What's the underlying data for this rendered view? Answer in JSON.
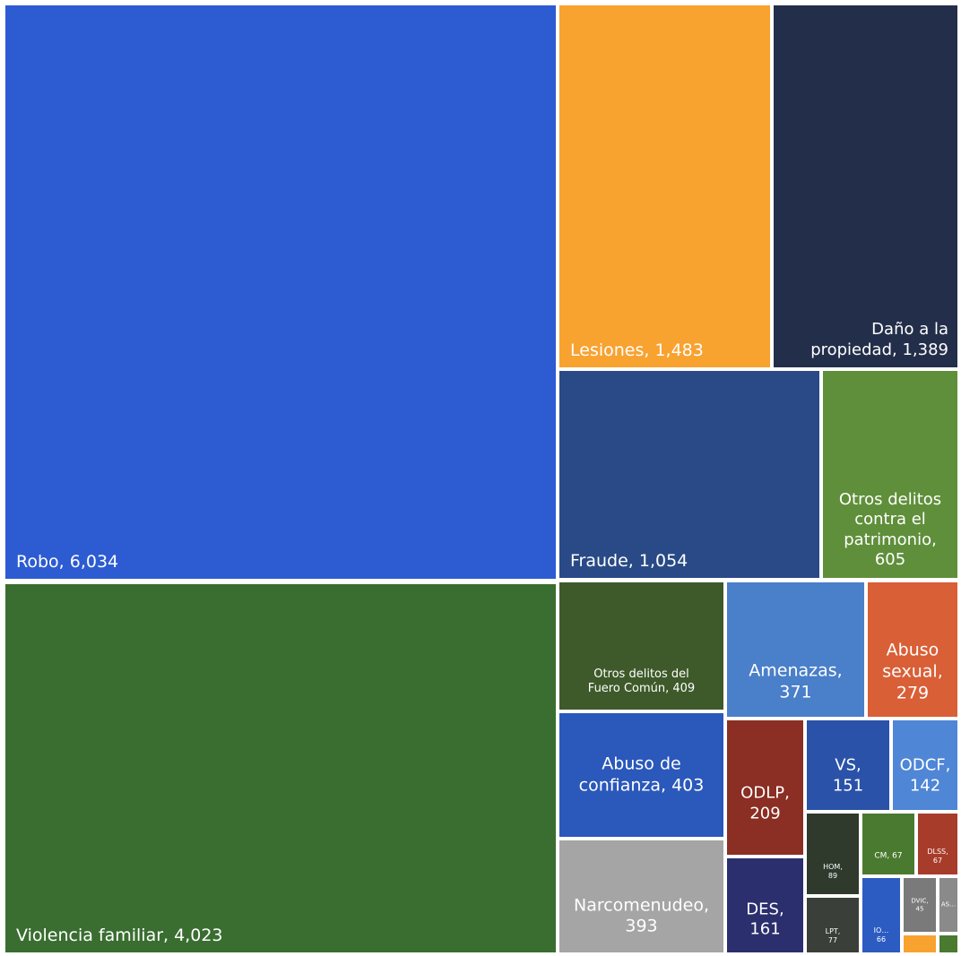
{
  "chart_data": {
    "type": "treemap",
    "items": [
      {
        "id": "robo",
        "name": "Robo",
        "value": 6034,
        "label": "Robo,  6,034",
        "color": "#2c5bd2"
      },
      {
        "id": "violencia-familiar",
        "name": "Violencia familiar",
        "value": 4023,
        "label": "Violencia familiar,  4,023",
        "color": "#3a6e31"
      },
      {
        "id": "lesiones",
        "name": "Lesiones",
        "value": 1483,
        "label": "Lesiones,  1,483",
        "color": "#f8a230"
      },
      {
        "id": "dano-propiedad",
        "name": "Daño a la propiedad",
        "value": 1389,
        "label": "Daño a la propiedad,  1,389",
        "color": "#232f4a"
      },
      {
        "id": "fraude",
        "name": "Fraude",
        "value": 1054,
        "label": "Fraude,  1,054",
        "color": "#294a86"
      },
      {
        "id": "otros-patrimonio",
        "name": "Otros delitos contra el patrimonio",
        "value": 605,
        "label": "Otros delitos contra el patrimonio, 605",
        "color": "#5f8f3a"
      },
      {
        "id": "otros-fuero-comun",
        "name": "Otros delitos del Fuero Común",
        "value": 409,
        "label": "Otros delitos del Fuero Común,  409",
        "color": "#3e5a2a"
      },
      {
        "id": "abuso-confianza",
        "name": "Abuso de confianza",
        "value": 403,
        "label": "Abuso de confianza,  403",
        "color": "#2a58bb"
      },
      {
        "id": "narcomenudeo",
        "name": "Narcomenudeo",
        "value": 393,
        "label": "Narcomenudeo, 393",
        "color": "#a5a5a5"
      },
      {
        "id": "amenazas",
        "name": "Amenazas",
        "value": 371,
        "label": "Amenazas, 371",
        "color": "#4a7fc9"
      },
      {
        "id": "abuso-sexual",
        "name": "Abuso sexual",
        "value": 279,
        "label": "Abuso sexual, 279",
        "color": "#d95f36"
      },
      {
        "id": "odlp",
        "name": "ODLP",
        "value": 209,
        "label": "ODLP, 209",
        "color": "#8b2e23"
      },
      {
        "id": "des",
        "name": "DES",
        "value": 161,
        "label": "DES, 161",
        "color": "#2b2f6e"
      },
      {
        "id": "vs",
        "name": "VS",
        "value": 151,
        "label": "VS, 151",
        "color": "#2a52a8"
      },
      {
        "id": "odcf",
        "name": "ODCF",
        "value": 142,
        "label": "ODCF, 142",
        "color": "#4f86d6"
      },
      {
        "id": "hom",
        "name": "HOM",
        "value": 89,
        "label": "HOM, 89",
        "color": "#2f3a2c"
      },
      {
        "id": "cm",
        "name": "CM",
        "value": 67,
        "label": "CM, 67",
        "color": "#4a7a30"
      },
      {
        "id": "dlss",
        "name": "DLSS",
        "value": 67,
        "label": "DLSS, 67",
        "color": "#a83c2a"
      },
      {
        "id": "lpt",
        "name": "LPT",
        "value": 77,
        "label": "LPT, 77",
        "color": "#3a3f3a"
      },
      {
        "id": "io",
        "name": "IO",
        "value": 66,
        "label": "IO..., 66",
        "color": "#2c5bc2"
      },
      {
        "id": "dvic",
        "name": "DVIC",
        "value": 45,
        "label": "DVIC, 45",
        "color": "#7a7a7a"
      },
      {
        "id": "as",
        "name": "AS",
        "value": null,
        "label": "AS...",
        "color": "#8a8a8a"
      },
      {
        "id": "tiny-orange",
        "name": "",
        "value": null,
        "label": "",
        "color": "#f8a230"
      },
      {
        "id": "tiny-green",
        "name": "",
        "value": null,
        "label": "",
        "color": "#4a7a30"
      }
    ]
  }
}
